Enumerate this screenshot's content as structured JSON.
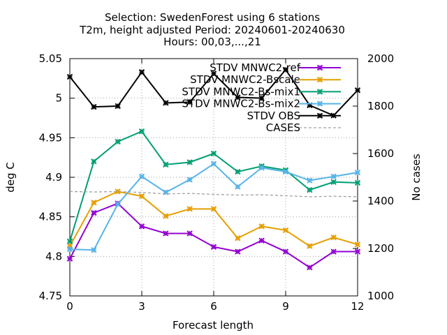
{
  "chart_data": {
    "type": "line",
    "title_lines": [
      "Selection: SwedenForest using     6 stations",
      "T2m, height adjusted   Period: 20240601-20240630",
      "Hours: 00,03,...,21"
    ],
    "xlabel": "Forecast length",
    "ylabel": "deg C",
    "y2label": "No cases",
    "xlim": [
      0,
      12
    ],
    "ylim": [
      4.75,
      5.05
    ],
    "y2lim": [
      1000,
      2000
    ],
    "xticks": [
      "0",
      "3",
      "6",
      "9",
      "12"
    ],
    "yticks": [
      "4.75",
      "4.8",
      "4.85",
      "4.9",
      "4.95",
      "5",
      "5.05"
    ],
    "y2ticks": [
      "1000",
      "1200",
      "1400",
      "1600",
      "1800",
      "2000"
    ],
    "grid": true,
    "legend_position": "top-right",
    "x": [
      0,
      1,
      2,
      3,
      4,
      5,
      6,
      7,
      8,
      9,
      10,
      11,
      12
    ],
    "series": [
      {
        "name": "STDV MNWC2-ref",
        "axis": "y",
        "color": "#9400d3",
        "marker": "x",
        "values": [
          4.797,
          4.855,
          4.867,
          4.838,
          4.829,
          4.829,
          4.812,
          4.806,
          4.82,
          4.806,
          4.786,
          4.806,
          4.806
        ]
      },
      {
        "name": "STDV MNWC2-Bscale",
        "axis": "y",
        "color": "#e69f00",
        "marker": "x",
        "values": [
          4.813,
          4.868,
          4.882,
          4.876,
          4.851,
          4.86,
          4.86,
          4.823,
          4.838,
          4.833,
          4.813,
          4.824,
          4.815
        ]
      },
      {
        "name": "STDV MNWC2-Bs-mix1",
        "axis": "y",
        "color": "#009e73",
        "marker": "x",
        "values": [
          4.819,
          4.92,
          4.945,
          4.958,
          4.916,
          4.919,
          4.93,
          4.907,
          4.914,
          4.909,
          4.884,
          4.894,
          4.893
        ]
      },
      {
        "name": "STDV MNWC2-Bs-mix2",
        "axis": "y",
        "color": "#56b4e9",
        "marker": "x",
        "values": [
          4.809,
          4.808,
          4.866,
          4.901,
          4.881,
          4.897,
          4.917,
          4.888,
          4.912,
          4.907,
          4.896,
          4.901,
          4.906
        ]
      },
      {
        "name": "STDV OBS",
        "axis": "y",
        "color": "#000000",
        "marker": "x",
        "values": [
          5.027,
          4.989,
          4.99,
          5.033,
          4.994,
          4.995,
          5.031,
          5.001,
          5.0,
          5.036,
          4.991,
          4.978,
          5.01
        ]
      },
      {
        "name": "CASES",
        "axis": "y2",
        "color": "#a0a0a0",
        "dashed": true,
        "values": [
          1440,
          1438,
          1440,
          1436,
          1430,
          1432,
          1428,
          1425,
          1426,
          1422,
          1418,
          1420,
          1418
        ]
      }
    ]
  }
}
